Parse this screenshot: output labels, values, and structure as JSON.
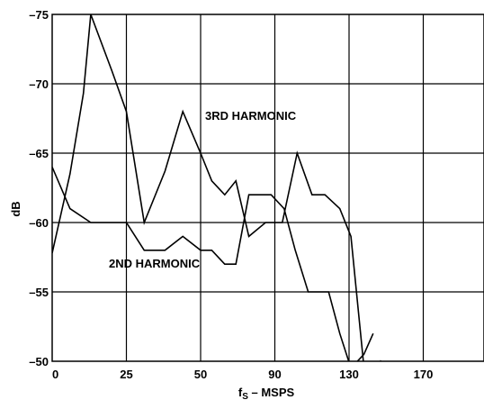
{
  "chart_data": {
    "type": "line",
    "xlabel_main": "f",
    "xlabel_sub": "S",
    "xlabel_rest": " – MSPS",
    "ylabel": "dB",
    "x_ticks": [
      0,
      25,
      50,
      90,
      130,
      170
    ],
    "x_tick_labels": [
      "0",
      "25",
      "50",
      "90",
      "130",
      "170"
    ],
    "y_ticks": [
      -75,
      -70,
      -65,
      -60,
      -55,
      -50
    ],
    "y_tick_labels": [
      "–75",
      "–70",
      "–65",
      "–60",
      "–55",
      "–50"
    ],
    "grid": true,
    "colors": {
      "line": "#000000",
      "grid": "#000000",
      "background": "#ffffff"
    },
    "series": [
      {
        "name": "3RD HARMONIC",
        "points": [
          [
            0,
            -57.8
          ],
          [
            6,
            -63.5
          ],
          [
            10.5,
            -69.3
          ],
          [
            13,
            -75
          ],
          [
            20,
            -71
          ],
          [
            25,
            -68
          ],
          [
            31,
            -60
          ],
          [
            38,
            -63.7
          ],
          [
            44,
            -68
          ],
          [
            50,
            -65
          ],
          [
            56,
            -63
          ],
          [
            63,
            -62
          ],
          [
            69,
            -63
          ],
          [
            76,
            -59
          ],
          [
            85,
            -60
          ],
          [
            94,
            -60
          ],
          [
            102,
            -65
          ],
          [
            110,
            -62
          ],
          [
            117,
            -62
          ],
          [
            125,
            -61
          ],
          [
            131,
            -59
          ],
          [
            138,
            -49.6
          ],
          [
            143,
            -48.7
          ],
          [
            147,
            -50
          ],
          [
            152,
            -49
          ]
        ]
      },
      {
        "name": "2ND HARMONIC",
        "points": [
          [
            0,
            -64
          ],
          [
            6,
            -61
          ],
          [
            13,
            -60
          ],
          [
            19,
            -60
          ],
          [
            25,
            -60
          ],
          [
            31,
            -58
          ],
          [
            38,
            -58
          ],
          [
            44,
            -59
          ],
          [
            50,
            -58
          ],
          [
            56,
            -58
          ],
          [
            63,
            -57
          ],
          [
            69,
            -57
          ],
          [
            76,
            -62
          ],
          [
            83,
            -62
          ],
          [
            88,
            -62
          ],
          [
            95,
            -61
          ],
          [
            101,
            -58
          ],
          [
            108,
            -55
          ],
          [
            113,
            -55
          ],
          [
            119,
            -55
          ],
          [
            125,
            -52
          ],
          [
            131,
            -49.5
          ],
          [
            138,
            -50.5
          ],
          [
            143,
            -52
          ]
        ]
      }
    ]
  }
}
